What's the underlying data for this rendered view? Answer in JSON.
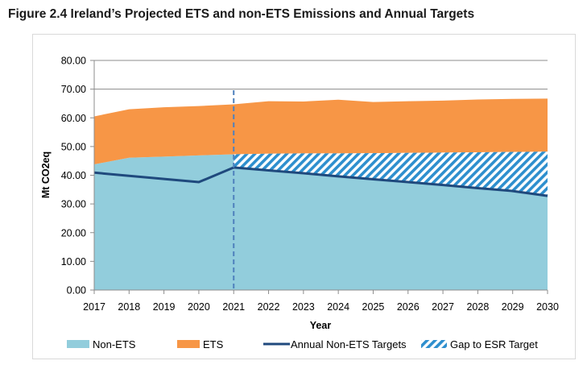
{
  "title": "Figure 2.4 Ireland’s Projected ETS and non-ETS Emissions and Annual Targets",
  "chart_data": {
    "type": "area",
    "xlabel": "Year",
    "ylabel": "Mt CO2eq",
    "ylim": [
      0,
      80
    ],
    "y_ticks": [
      "0.00",
      "10.00",
      "20.00",
      "30.00",
      "40.00",
      "50.00",
      "60.00",
      "70.00",
      "80.00"
    ],
    "x": [
      "2017",
      "2018",
      "2019",
      "2020",
      "2021",
      "2022",
      "2023",
      "2024",
      "2025",
      "2026",
      "2027",
      "2028",
      "2029",
      "2030"
    ],
    "grid": "horizontal",
    "legend_position": "bottom",
    "reference_line": {
      "x": "2021",
      "style": "dashed"
    },
    "series": [
      {
        "name": "Non-ETS",
        "kind": "stacked-area",
        "color": "#92cddc",
        "values": [
          43.8,
          46.1,
          46.5,
          46.9,
          47.3,
          47.5,
          47.6,
          47.6,
          47.7,
          47.8,
          47.9,
          48.0,
          48.1,
          48.2
        ]
      },
      {
        "name": "ETS",
        "kind": "stacked-area",
        "color": "#f79646",
        "values": [
          16.7,
          16.9,
          17.2,
          17.2,
          17.4,
          18.3,
          18.1,
          18.7,
          17.8,
          18.0,
          18.1,
          18.4,
          18.5,
          18.5
        ]
      },
      {
        "name": "Annual Non-ETS Targets",
        "kind": "line",
        "color": "#1f497d",
        "values": [
          40.9,
          39.8,
          38.7,
          37.6,
          42.7,
          41.7,
          40.7,
          39.6,
          38.6,
          37.6,
          36.6,
          35.5,
          34.5,
          32.8
        ]
      },
      {
        "name": "Gap to ESR Target",
        "kind": "hatched-band",
        "color": "#2e8fce",
        "from": "2021"
      }
    ]
  }
}
